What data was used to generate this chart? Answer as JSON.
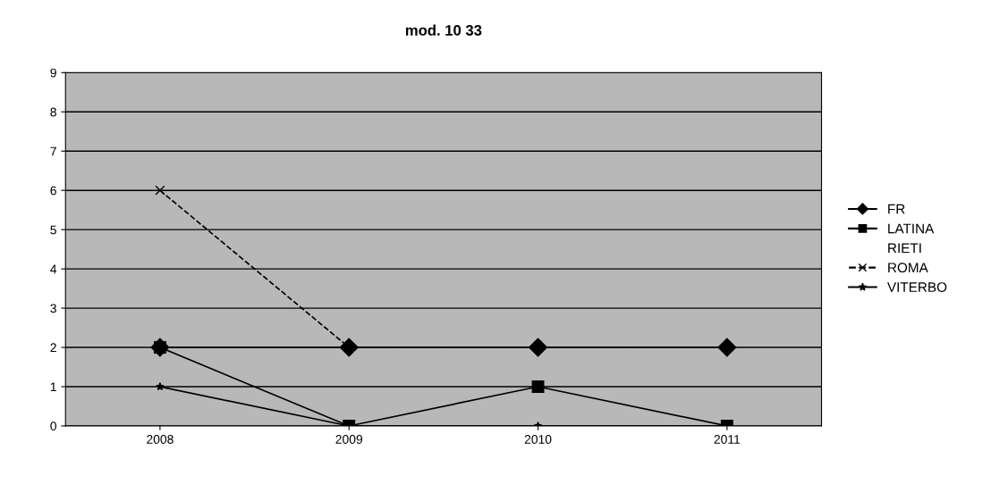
{
  "chart_data": {
    "type": "line",
    "title": "mod. 10 33",
    "categories": [
      "2008",
      "2009",
      "2010",
      "2011"
    ],
    "series": [
      {
        "name": "FR",
        "color": "#000000",
        "values": [
          2,
          2,
          2,
          2
        ],
        "marker": "diamond",
        "line_style": "solid"
      },
      {
        "name": "LATINA",
        "color": "#000000",
        "values": [
          2,
          0,
          1,
          0
        ],
        "marker": "square",
        "line_style": "solid"
      },
      {
        "name": "RIETI",
        "color": null,
        "values": [
          null,
          null,
          null,
          null
        ],
        "marker": "none",
        "line_style": "solid"
      },
      {
        "name": "ROMA",
        "color": "#000000",
        "values": [
          6,
          2,
          2,
          2
        ],
        "marker": "cross",
        "line_style": "dashed"
      },
      {
        "name": "VITERBO",
        "color": "#000000",
        "values": [
          1,
          0,
          0,
          0
        ],
        "marker": "star",
        "line_style": "solid"
      }
    ],
    "ylim": [
      0,
      9
    ],
    "yticks": [
      0,
      1,
      2,
      3,
      4,
      5,
      6,
      7,
      8,
      9
    ],
    "grid": "y",
    "legend": "right"
  }
}
